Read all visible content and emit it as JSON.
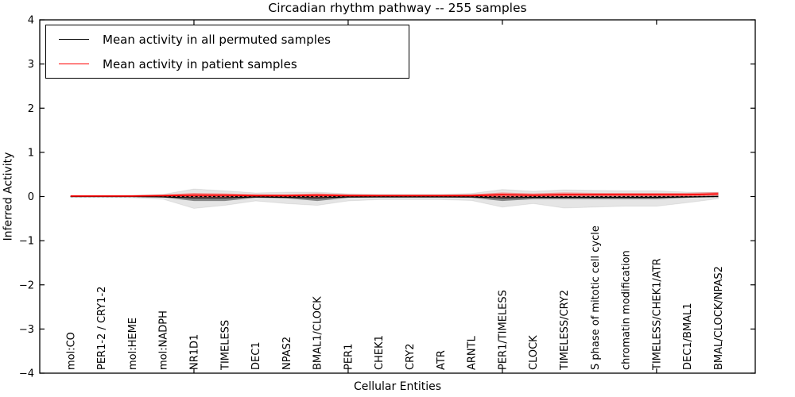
{
  "figure": {
    "title": "Circadian rhythm pathway -- 255 samples",
    "xlabel": "Cellular Entities",
    "ylabel": "Inferred Activity"
  },
  "legend": {
    "entries": [
      {
        "label": "Mean activity in all permuted samples",
        "color": "#000000"
      },
      {
        "label": "Mean activity in patient samples",
        "color": "#ff0000"
      }
    ]
  },
  "chart_data": {
    "type": "line",
    "title": "Circadian rhythm pathway -- 255 samples",
    "xlabel": "Cellular Entities",
    "ylabel": "Inferred Activity",
    "grid": false,
    "legend_position": "upper left",
    "ylim": [
      -4,
      4
    ],
    "yticks": [
      -4,
      -3,
      -2,
      -1,
      0,
      1,
      2,
      3,
      4
    ],
    "xlim": [
      0,
      23.2
    ],
    "xticks": [
      5,
      10,
      15,
      20
    ],
    "categories": [
      "mol:CO",
      "PER1-2 / CRY1-2",
      "mol:HEME",
      "mol:NADPH",
      "NR1D1",
      "TIMELESS",
      "DEC1",
      "NPAS2",
      "BMAL1/CLOCK",
      "PER1",
      "CHEK1",
      "CRY2",
      "ATR",
      "ARNTL",
      "PER1/TIMELESS",
      "CLOCK",
      "TIMELESS/CRY2",
      "S phase of mitotic cell cycle",
      "chromatin modification",
      "TIMELESS/CHEK1/ATR",
      "DEC1/BMAL1",
      "BMAL/CLOCK/NPAS2"
    ],
    "x": [
      1,
      2,
      3,
      4,
      5,
      6,
      7,
      8,
      9,
      10,
      11,
      12,
      13,
      14,
      15,
      16,
      17,
      18,
      19,
      20,
      21,
      22
    ],
    "series": [
      {
        "id": "permuted-mean",
        "name": "Mean activity in all permuted samples",
        "color": "#000000",
        "width": 1.2,
        "dash": null,
        "values": [
          0,
          0,
          0,
          -0.01,
          -0.03,
          -0.03,
          -0.01,
          -0.02,
          -0.03,
          -0.01,
          -0.01,
          -0.01,
          -0.01,
          -0.01,
          -0.03,
          -0.02,
          -0.02,
          -0.02,
          -0.02,
          -0.02,
          -0.01,
          0
        ]
      },
      {
        "id": "zero-baseline",
        "name": "zero baseline",
        "color": "#000000",
        "width": 1.3,
        "dash": "3 2.6",
        "values": [
          0,
          0,
          0,
          0,
          0,
          0,
          0,
          0,
          0,
          0,
          0,
          0,
          0,
          0,
          0,
          0,
          0,
          0,
          0,
          0,
          0,
          0
        ]
      },
      {
        "id": "patient-mean",
        "name": "Mean activity in patient samples",
        "color": "#ff0000",
        "width": 1.7,
        "dash": null,
        "values": [
          0.01,
          0.01,
          0.01,
          0.02,
          0.03,
          0.03,
          0.02,
          0.02,
          0.03,
          0.02,
          0.02,
          0.02,
          0.02,
          0.02,
          0.04,
          0.03,
          0.04,
          0.04,
          0.04,
          0.04,
          0.04,
          0.06
        ]
      }
    ],
    "bands": [
      {
        "name": "permuted-range",
        "color": "rgba(0,0,0,0.10)",
        "edge": "rgba(0,0,0,0.07)",
        "upper": [
          0.02,
          0.02,
          0.03,
          0.05,
          0.17,
          0.13,
          0.08,
          0.1,
          0.1,
          0.06,
          0.05,
          0.05,
          0.05,
          0.07,
          0.16,
          0.12,
          0.15,
          0.14,
          0.13,
          0.13,
          0.1,
          0.1
        ],
        "lower": [
          -0.02,
          -0.02,
          -0.03,
          -0.06,
          -0.27,
          -0.2,
          -0.1,
          -0.16,
          -0.2,
          -0.1,
          -0.07,
          -0.07,
          -0.07,
          -0.09,
          -0.24,
          -0.16,
          -0.26,
          -0.24,
          -0.22,
          -0.22,
          -0.14,
          -0.05
        ]
      },
      {
        "name": "permuted-inner",
        "color": "rgba(0,0,0,0.42)",
        "edge": "none",
        "upper": [
          0.01,
          0.01,
          0.01,
          0.01,
          0,
          0,
          0.01,
          0.01,
          0,
          0.01,
          0.01,
          0.01,
          0.01,
          0.01,
          0,
          0,
          0,
          0,
          0,
          0,
          0.01,
          0.02
        ],
        "lower": [
          -0.01,
          -0.01,
          -0.01,
          -0.02,
          -0.1,
          -0.1,
          -0.03,
          -0.04,
          -0.1,
          -0.03,
          -0.02,
          -0.02,
          -0.02,
          -0.03,
          -0.1,
          -0.06,
          -0.06,
          -0.06,
          -0.06,
          -0.06,
          -0.03,
          -0.01
        ]
      },
      {
        "name": "patient-range",
        "color": "rgba(255,0,0,0.38)",
        "edge": "none",
        "upper": [
          0.03,
          0.03,
          0.03,
          0.04,
          0.08,
          0.07,
          0.05,
          0.05,
          0.07,
          0.05,
          0.04,
          0.04,
          0.04,
          0.05,
          0.09,
          0.07,
          0.09,
          0.08,
          0.08,
          0.08,
          0.08,
          0.1
        ],
        "lower": [
          -0.01,
          -0.01,
          -0.01,
          -0.01,
          -0.02,
          -0.02,
          -0.01,
          -0.01,
          -0.02,
          -0.01,
          -0.01,
          -0.01,
          -0.01,
          -0.01,
          -0.02,
          -0.01,
          0,
          0,
          0,
          0,
          0,
          0.02
        ]
      }
    ]
  }
}
